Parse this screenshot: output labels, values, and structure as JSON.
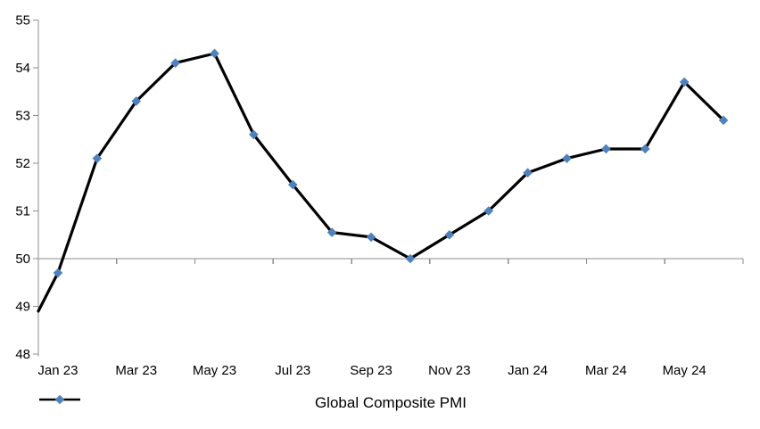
{
  "chart_data": {
    "type": "line",
    "title": "",
    "categories": [
      "Jan 23",
      "Feb 23",
      "Mar 23",
      "Apr 23",
      "May 23",
      "Jun 23",
      "Jul 23",
      "Aug 23",
      "Sep 23",
      "Oct 23",
      "Nov 23",
      "Dec 23",
      "Jan 24",
      "Feb 24",
      "Mar 24",
      "Apr 24",
      "May 24",
      "Jun 24"
    ],
    "series": [
      {
        "name": "Global Composite PMI",
        "values": [
          49.7,
          52.1,
          53.3,
          54.1,
          54.3,
          52.6,
          51.55,
          50.55,
          50.45,
          50.0,
          50.5,
          51.0,
          51.8,
          52.1,
          52.3,
          52.3,
          53.7,
          52.9
        ],
        "marker": "diamond"
      }
    ],
    "lead_in_value_at_left_edge": 48.9,
    "x_axis": {
      "visible_labels": [
        "Jan 23",
        "Mar 23",
        "May 23",
        "Jul 23",
        "Sep 23",
        "Nov 23",
        "Jan 24",
        "Mar 24",
        "May 24"
      ],
      "label_every": 2,
      "tick_every": 2,
      "axis_position_value": 50
    },
    "y_axis": {
      "min": 48,
      "max": 55,
      "step": 1,
      "tick_labels": [
        "55",
        "54",
        "53",
        "52",
        "51",
        "50",
        "49",
        "48"
      ]
    },
    "legend": {
      "label": "Global Composite PMI",
      "position": "bottom"
    },
    "colors": {
      "line": "#000000",
      "marker": "#4F81BD",
      "axis": "#8E8E8E",
      "text": "#000000",
      "background": "#FFFFFF"
    },
    "grid": "off"
  }
}
